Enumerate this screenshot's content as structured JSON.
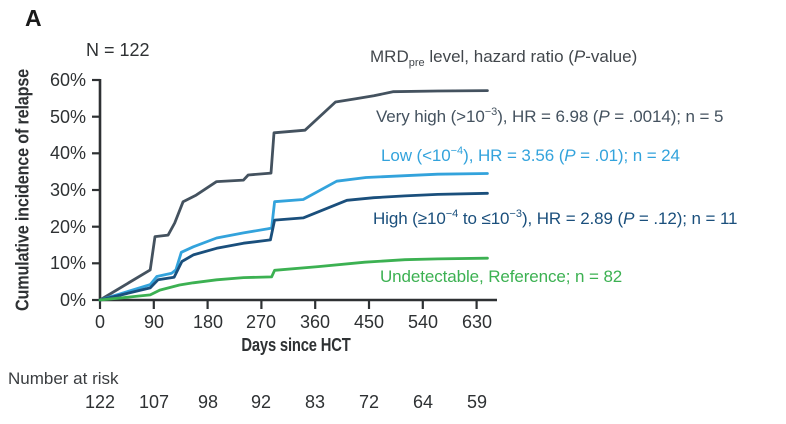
{
  "panel_label": "A",
  "n_label": "N = 122",
  "y_axis": {
    "tick_labels": [
      "60%",
      "50%",
      "40%",
      "30%",
      "20%",
      "10%",
      "0%"
    ]
  },
  "x_axis": {
    "tick_labels": [
      "0",
      "90",
      "180",
      "270",
      "360",
      "450",
      "540",
      "630"
    ]
  },
  "number_at_risk": {
    "label": "Number at risk",
    "values": [
      "122",
      "107",
      "98",
      "92",
      "83",
      "72",
      "64",
      "59"
    ]
  },
  "legend": {
    "title_segments": [
      {
        "t": "MRD"
      },
      {
        "sub": "pre"
      },
      {
        "t": " level, hazard ratio ("
      },
      {
        "i": "P"
      },
      {
        "t": "-value)"
      }
    ],
    "entries": [
      {
        "id": "very-high",
        "color": "#44525f",
        "segments": [
          {
            "t": "Very high (>10"
          },
          {
            "sup": "−3"
          },
          {
            "t": "), HR = 6.98 ("
          },
          {
            "i": "P"
          },
          {
            "t": " = .0014); n = 5"
          }
        ]
      },
      {
        "id": "low",
        "color": "#33a3dc",
        "segments": [
          {
            "t": "Low (<10"
          },
          {
            "sup": "−4"
          },
          {
            "t": "), HR = 3.56 ("
          },
          {
            "i": "P"
          },
          {
            "t": " = .01); n = 24"
          }
        ]
      },
      {
        "id": "high",
        "color": "#1a4f7c",
        "segments": [
          {
            "t": "High (≥10"
          },
          {
            "sup": "−4"
          },
          {
            "t": " to ≤10"
          },
          {
            "sup": "−3"
          },
          {
            "t": "), HR = 2.89 ("
          },
          {
            "i": "P"
          },
          {
            "t": " = .12); n = 11"
          }
        ]
      },
      {
        "id": "undetectable",
        "color": "#3cb152",
        "segments": [
          {
            "t": "Undetectable, Reference; n = 82"
          }
        ]
      }
    ]
  },
  "chart_data": {
    "type": "line",
    "subtype": "cumulative-incidence-step-curves",
    "title": "",
    "xlabel": "Days since HCT",
    "ylabel": "Cumulative incidence of relapse",
    "xlim": [
      0,
      660
    ],
    "ylim_pct": [
      0,
      60
    ],
    "x_ticks": [
      0,
      90,
      180,
      270,
      360,
      450,
      540,
      630
    ],
    "y_ticks_pct": [
      0,
      10,
      20,
      30,
      40,
      50,
      60
    ],
    "grid": false,
    "legend_position": "right-inside",
    "number_at_risk": [
      122,
      107,
      98,
      92,
      83,
      72,
      64,
      59
    ],
    "series": [
      {
        "id": "very-high",
        "name": "Very high (>10−3)",
        "hazard_ratio": 6.98,
        "p_value": ".0014",
        "n": 5,
        "color": "#44525f",
        "points": [
          [
            0,
            0
          ],
          [
            84,
            8.2
          ],
          [
            92,
            17.3
          ],
          [
            114,
            17.7
          ],
          [
            125,
            21
          ],
          [
            139,
            26.8
          ],
          [
            161,
            28.6
          ],
          [
            195,
            32.3
          ],
          [
            240,
            32.7
          ],
          [
            248,
            34.1
          ],
          [
            286,
            34.6
          ],
          [
            291,
            45.6
          ],
          [
            343,
            46.3
          ],
          [
            394,
            54
          ],
          [
            428,
            54.9
          ],
          [
            458,
            55.7
          ],
          [
            490,
            56.8
          ],
          [
            565,
            57
          ],
          [
            648,
            57.1
          ]
        ]
      },
      {
        "id": "low",
        "name": "Low (<10−4)",
        "hazard_ratio": 3.56,
        "p_value": ".01",
        "n": 24,
        "color": "#33a3dc",
        "points": [
          [
            0,
            0
          ],
          [
            84,
            4.2
          ],
          [
            95,
            6.4
          ],
          [
            120,
            7.3
          ],
          [
            127,
            8.2
          ],
          [
            136,
            13
          ],
          [
            156,
            14.5
          ],
          [
            195,
            16.9
          ],
          [
            240,
            18.3
          ],
          [
            280,
            19.4
          ],
          [
            287,
            19.6
          ],
          [
            292,
            26.8
          ],
          [
            340,
            27.4
          ],
          [
            396,
            32.4
          ],
          [
            445,
            33.4
          ],
          [
            510,
            33.9
          ],
          [
            565,
            34.3
          ],
          [
            648,
            34.5
          ]
        ]
      },
      {
        "id": "high",
        "name": "High (≥10−4 to ≤10−3)",
        "hazard_ratio": 2.89,
        "p_value": ".12",
        "n": 11,
        "color": "#1a4f7c",
        "points": [
          [
            0,
            0
          ],
          [
            84,
            3.3
          ],
          [
            97,
            5.5
          ],
          [
            124,
            6.2
          ],
          [
            137,
            10.5
          ],
          [
            156,
            12.3
          ],
          [
            195,
            14.1
          ],
          [
            240,
            15.5
          ],
          [
            285,
            16.4
          ],
          [
            292,
            21.8
          ],
          [
            340,
            22.4
          ],
          [
            413,
            27.2
          ],
          [
            458,
            27.9
          ],
          [
            510,
            28.4
          ],
          [
            565,
            28.8
          ],
          [
            648,
            29.1
          ]
        ]
      },
      {
        "id": "undetectable",
        "name": "Undetectable",
        "reference": true,
        "n": 82,
        "color": "#3cb152",
        "points": [
          [
            0,
            0
          ],
          [
            84,
            1.4
          ],
          [
            100,
            2.7
          ],
          [
            133,
            4.1
          ],
          [
            156,
            4.7
          ],
          [
            195,
            5.5
          ],
          [
            240,
            6.1
          ],
          [
            287,
            6.3
          ],
          [
            292,
            8.1
          ],
          [
            365,
            9.1
          ],
          [
            443,
            10.3
          ],
          [
            510,
            11
          ],
          [
            565,
            11.2
          ],
          [
            648,
            11.4
          ]
        ]
      }
    ]
  }
}
